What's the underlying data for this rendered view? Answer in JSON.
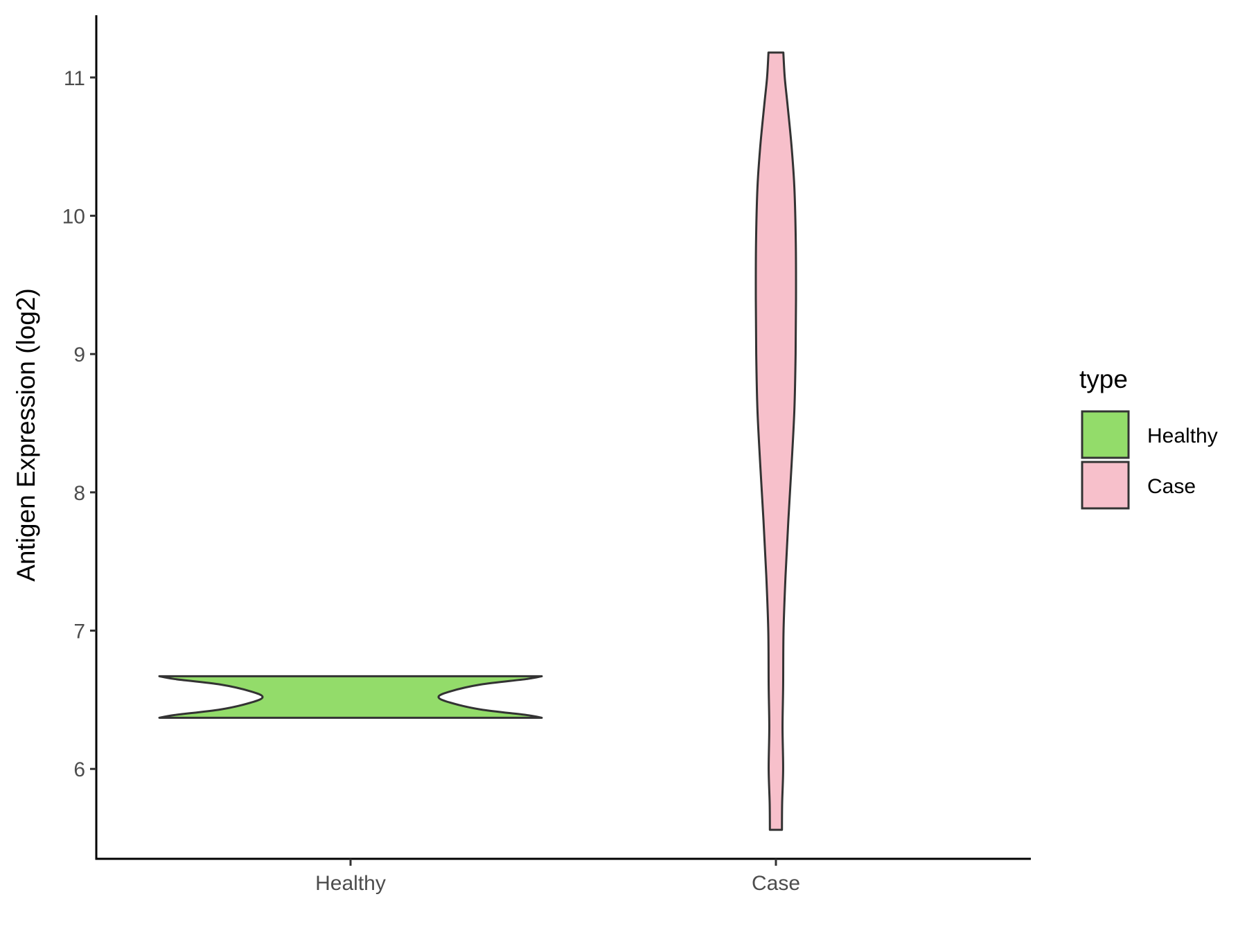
{
  "chart_data": {
    "type": "violin",
    "title": "",
    "xlabel": "",
    "ylabel": "Antigen Expression (log2)",
    "categories": [
      "Healthy",
      "Case"
    ],
    "ylim": [
      5.35,
      11.45
    ],
    "yticks": [
      6,
      7,
      8,
      9,
      10,
      11
    ],
    "grid": false,
    "legend": {
      "title": "type",
      "position": "right",
      "entries": [
        {
          "label": "Healthy",
          "color": "#93DC6A"
        },
        {
          "label": "Case",
          "color": "#F7C0CB"
        }
      ]
    },
    "series": [
      {
        "name": "Healthy",
        "color": "#93DC6A",
        "outline": "#333333",
        "min": 6.37,
        "max": 6.67,
        "density_profile": [
          {
            "y": 6.37,
            "w": 1.0
          },
          {
            "y": 6.39,
            "w": 0.92
          },
          {
            "y": 6.43,
            "w": 0.68
          },
          {
            "y": 6.48,
            "w": 0.52
          },
          {
            "y": 6.52,
            "w": 0.46
          },
          {
            "y": 6.56,
            "w": 0.52
          },
          {
            "y": 6.61,
            "w": 0.68
          },
          {
            "y": 6.65,
            "w": 0.92
          },
          {
            "y": 6.67,
            "w": 1.0
          }
        ]
      },
      {
        "name": "Case",
        "color": "#F7C0CB",
        "outline": "#333333",
        "min": 5.56,
        "max": 11.18,
        "density_profile": [
          {
            "y": 5.56,
            "w": 0.3
          },
          {
            "y": 5.75,
            "w": 0.31
          },
          {
            "y": 6.0,
            "w": 0.36
          },
          {
            "y": 6.3,
            "w": 0.33
          },
          {
            "y": 6.6,
            "w": 0.36
          },
          {
            "y": 7.0,
            "w": 0.38
          },
          {
            "y": 7.4,
            "w": 0.48
          },
          {
            "y": 7.8,
            "w": 0.62
          },
          {
            "y": 8.2,
            "w": 0.78
          },
          {
            "y": 8.6,
            "w": 0.92
          },
          {
            "y": 9.0,
            "w": 0.98
          },
          {
            "y": 9.4,
            "w": 1.0
          },
          {
            "y": 9.8,
            "w": 0.99
          },
          {
            "y": 10.2,
            "w": 0.92
          },
          {
            "y": 10.5,
            "w": 0.78
          },
          {
            "y": 10.8,
            "w": 0.58
          },
          {
            "y": 11.0,
            "w": 0.44
          },
          {
            "y": 11.18,
            "w": 0.37
          }
        ]
      }
    ]
  }
}
